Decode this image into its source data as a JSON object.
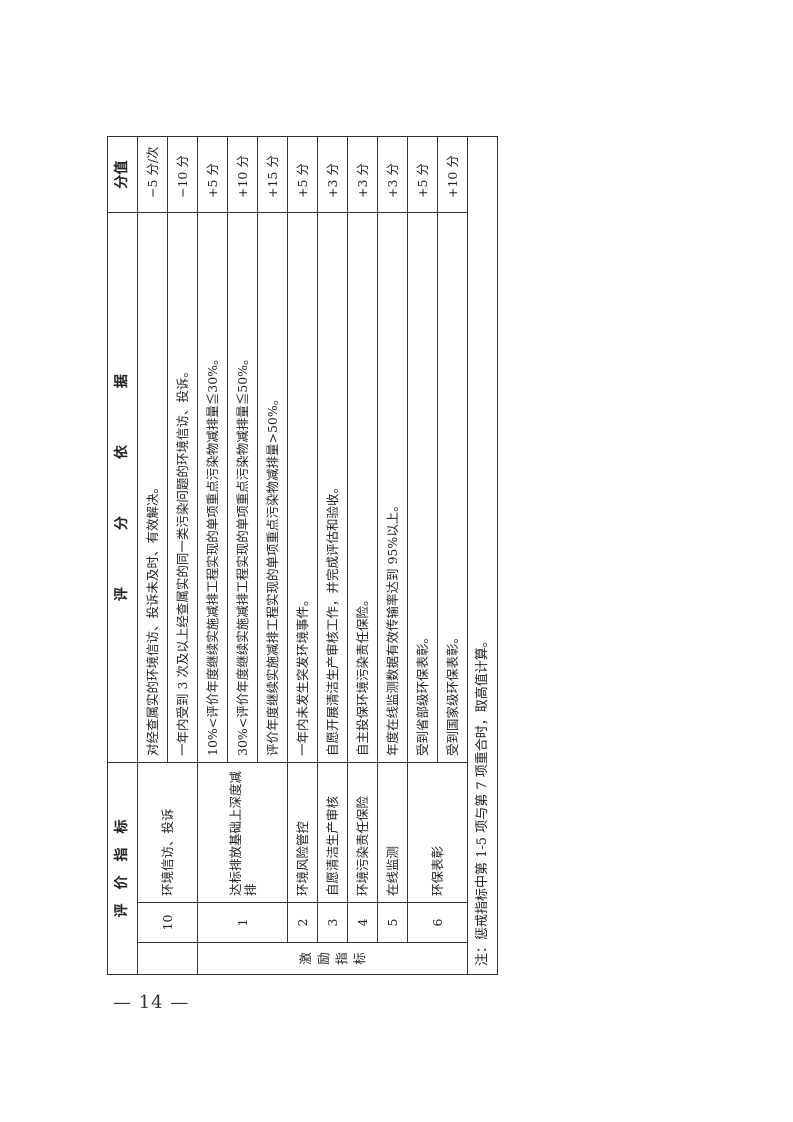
{
  "header": {
    "indicator": "评　价　指　标",
    "criteria": "评　　　　分　　　　依　　　　据",
    "score": "分值"
  },
  "groups": {
    "penalty_label": "",
    "incentive_label": [
      "激",
      "励",
      "指",
      "标"
    ]
  },
  "rows": [
    {
      "no": "10",
      "indicator": "环境信访、投诉",
      "criteria": "对经查属实的环境信访、投诉未及时、有效解决。",
      "score": "−5 分/次"
    },
    {
      "criteria": "一年内受到 3 次及以上经查属实的同一类污染问题的环境信访、投诉。",
      "score": "−10 分"
    },
    {
      "no": "1",
      "indicator": "达标排放基础上深度减排",
      "criteria": "10%<评价年度继续实施减排工程实现的单项重点污染物减排量≦30%。",
      "score": "+5 分"
    },
    {
      "criteria": "30%<评价年度继续实施减排工程实现的单项重点污染物减排量≦50%。",
      "score": "+10 分"
    },
    {
      "criteria": "评价年度继续实施减排工程实现的单项重点污染物减排量>50%。",
      "score": "+15 分"
    },
    {
      "no": "2",
      "indicator": "环境风险管控",
      "criteria": "一年内未发生突发环境事件。",
      "score": "+5 分"
    },
    {
      "no": "3",
      "indicator": "自愿清洁生产审核",
      "criteria": "自愿开展清洁生产审核工作，并完成评估和验收。",
      "score": "+3 分"
    },
    {
      "no": "4",
      "indicator": "环境污染责任保险",
      "criteria": "自主投保环境污染责任保险。",
      "score": "+3 分"
    },
    {
      "no": "5",
      "indicator": "在线监测",
      "criteria": "年度在线监测数据有效传输率达到 95%以上。",
      "score": "+3 分"
    },
    {
      "no": "6",
      "indicator": "环保表彰",
      "criteria": "受到省部级环保表彰。",
      "score": "+5 分"
    },
    {
      "criteria": "受到国家级环保表彰。",
      "score": "+10 分"
    }
  ],
  "note": "注：惩戒指标中第 1-5 项与第 7 项重合时，取高值计算。",
  "page_number": "— 14 —"
}
